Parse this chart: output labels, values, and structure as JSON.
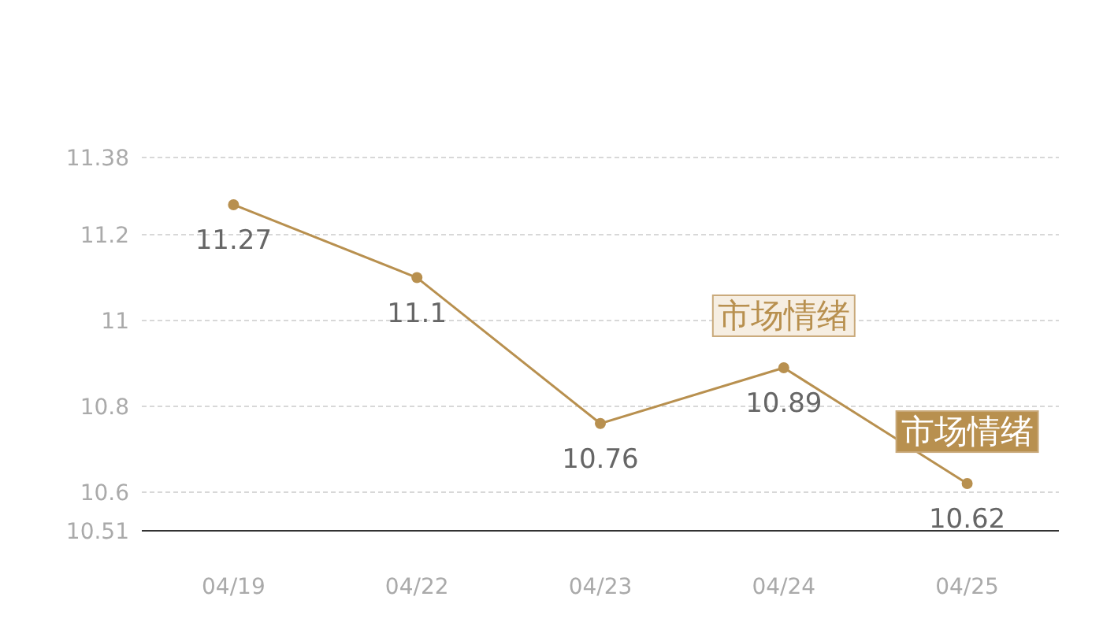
{
  "chart_data": {
    "type": "line",
    "categories": [
      "04/19",
      "04/22",
      "04/23",
      "04/24",
      "04/25"
    ],
    "series": [
      {
        "color": "#b8904f",
        "values": [
          11.27,
          11.1,
          10.76,
          10.89,
          10.62
        ]
      }
    ],
    "ylim": [
      10.51,
      11.38
    ],
    "yticks": [
      10.51,
      10.6,
      10.8,
      11,
      11.2,
      11.38
    ],
    "grid": "y",
    "marker": "circle",
    "data_labels": true,
    "annotations": [
      {
        "text": "市场情绪",
        "x": "04/24",
        "y": 10.89
      },
      {
        "text": "市场情绪",
        "x": "04/25",
        "y": 10.62
      }
    ]
  }
}
